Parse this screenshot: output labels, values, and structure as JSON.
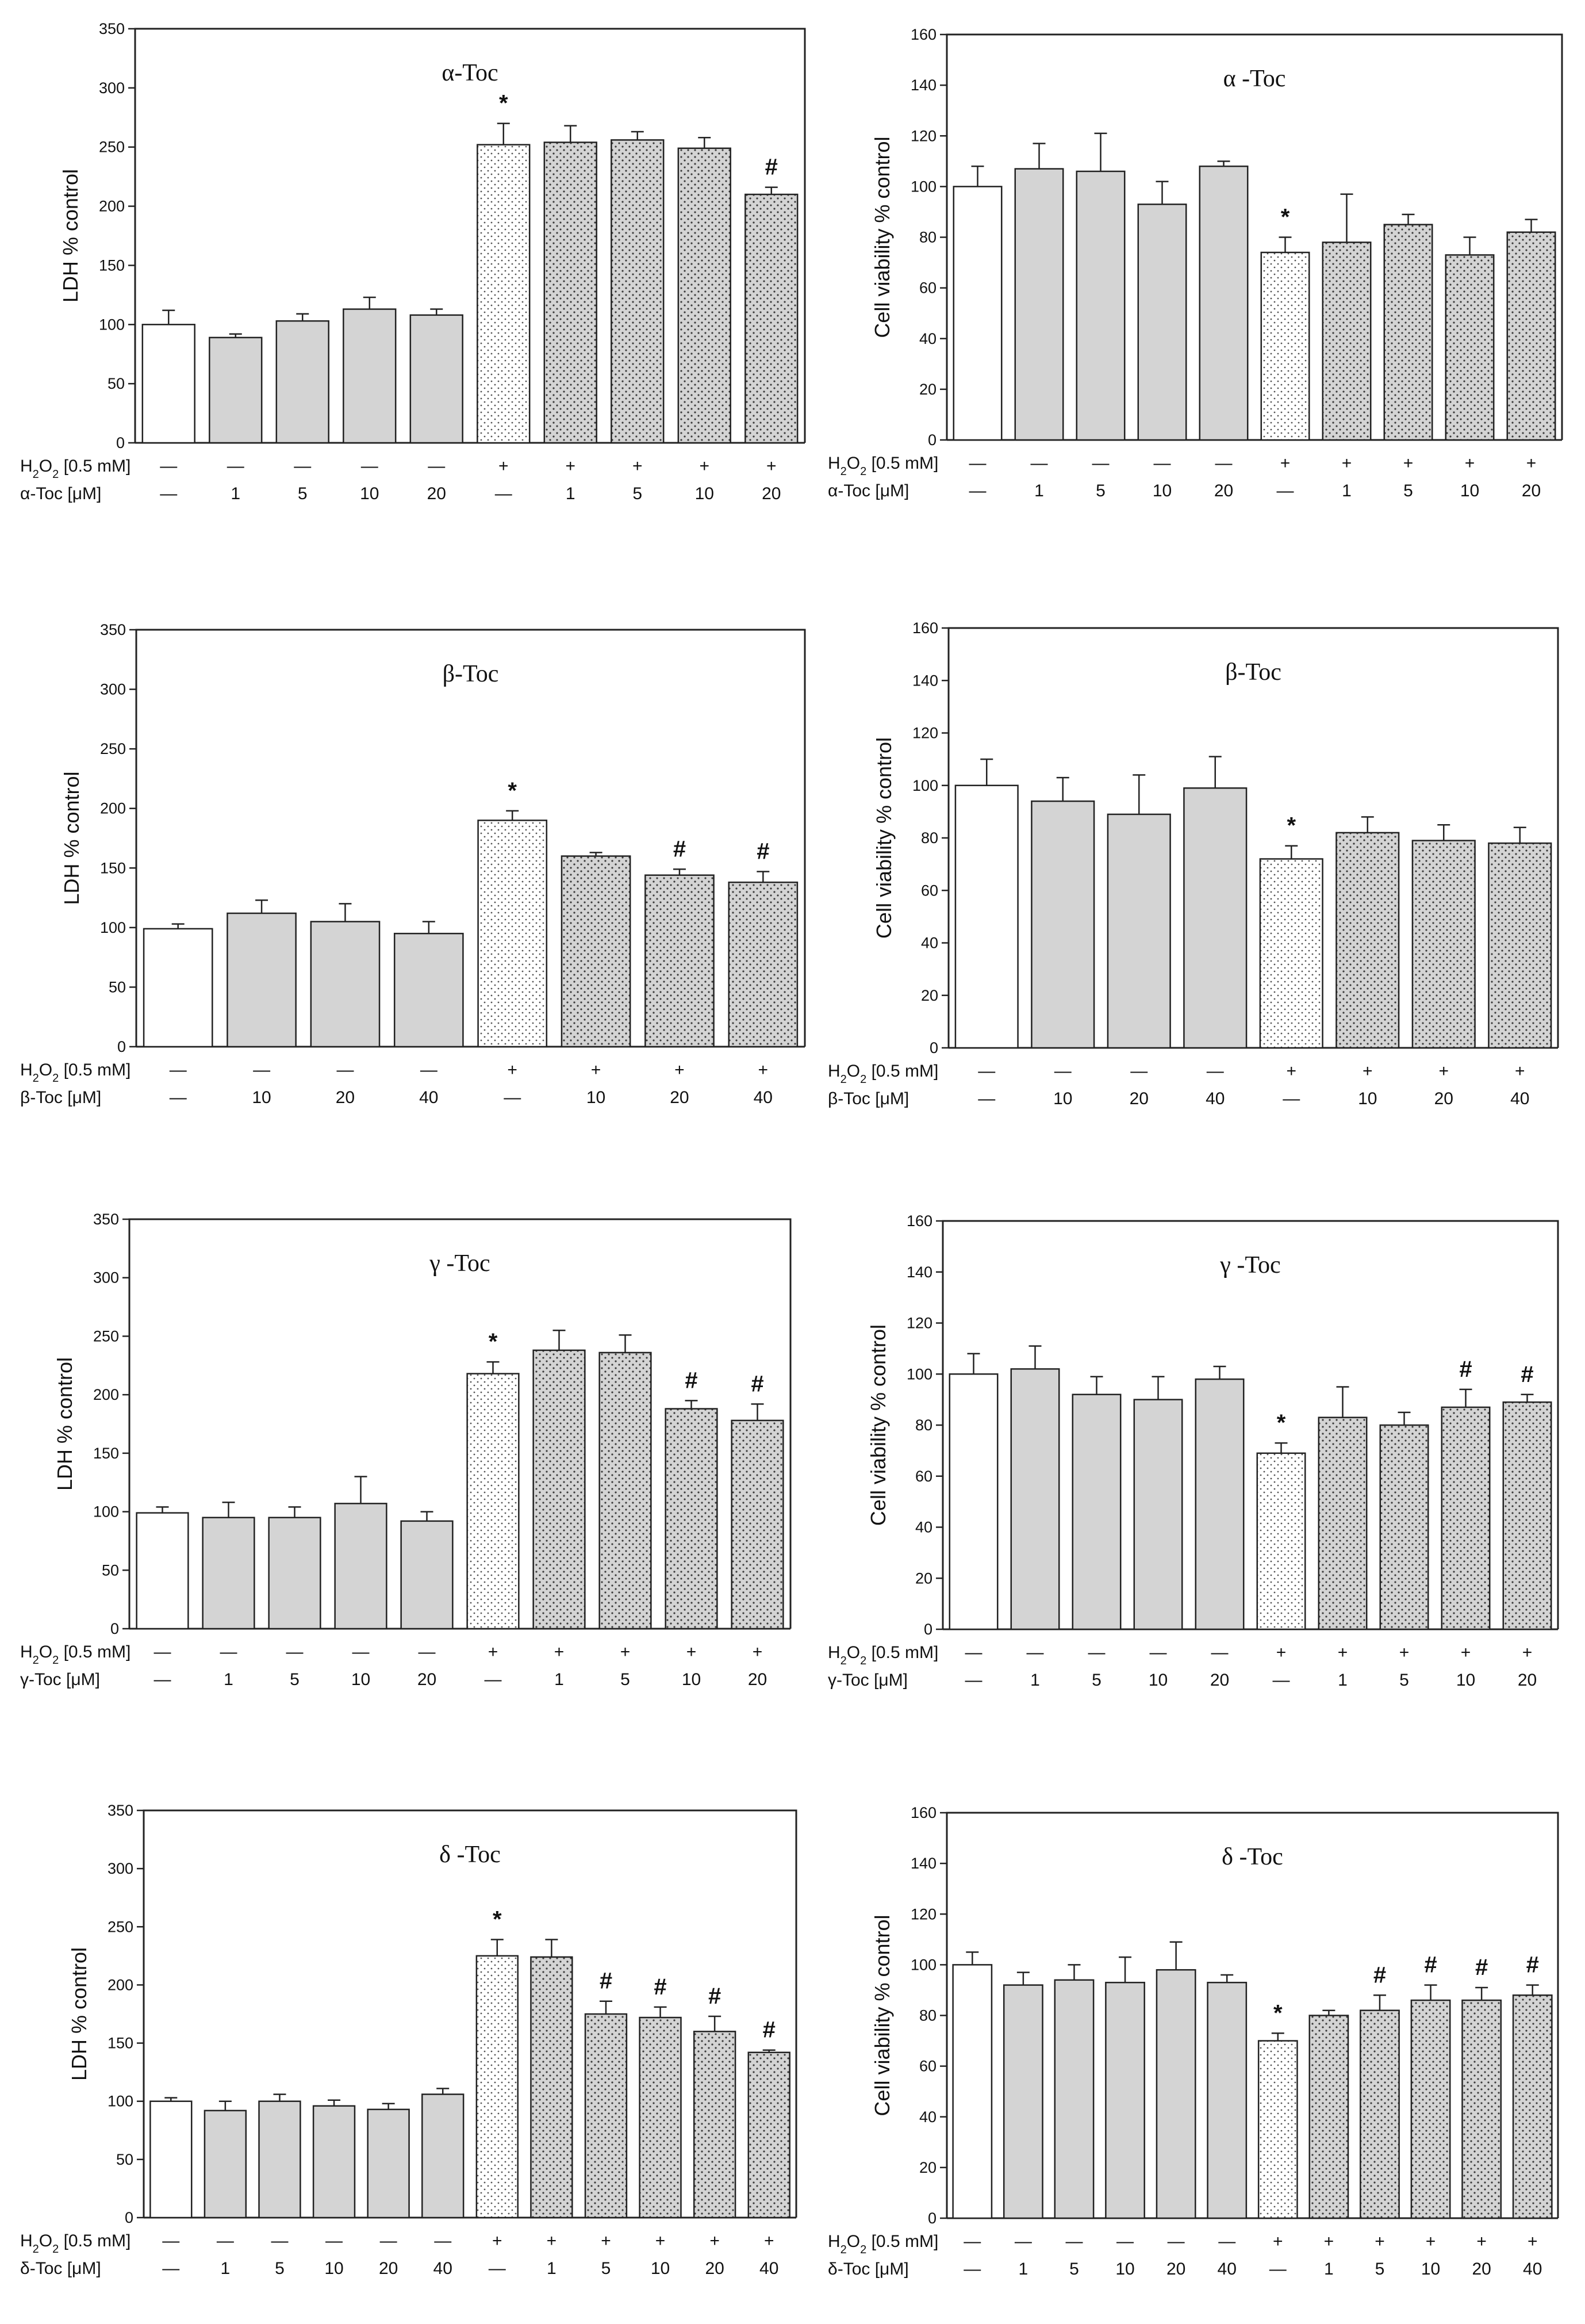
{
  "chart_data": [
    {
      "type": "bar",
      "title": "α-Toc",
      "xlabel": "",
      "ylabel": "LDH % control",
      "ylim": [
        0,
        350
      ],
      "yticks": [
        0,
        50,
        100,
        150,
        200,
        250,
        300,
        350
      ],
      "row_labels": [
        "H2O2 [0.5 mM]",
        "α-Toc [μM]"
      ],
      "categories": [
        {
          "h2o2": "—",
          "dose": "—"
        },
        {
          "h2o2": "—",
          "dose": "1"
        },
        {
          "h2o2": "—",
          "dose": "5"
        },
        {
          "h2o2": "—",
          "dose": "10"
        },
        {
          "h2o2": "—",
          "dose": "20"
        },
        {
          "h2o2": "+",
          "dose": "—"
        },
        {
          "h2o2": "+",
          "dose": "1"
        },
        {
          "h2o2": "+",
          "dose": "5"
        },
        {
          "h2o2": "+",
          "dose": "10"
        },
        {
          "h2o2": "+",
          "dose": "20"
        }
      ],
      "values": [
        100,
        89,
        103,
        113,
        108,
        252,
        254,
        256,
        249,
        210
      ],
      "errors": [
        12,
        3,
        6,
        10,
        5,
        18,
        14,
        7,
        9,
        6
      ],
      "fills": [
        "white",
        "gray",
        "gray",
        "gray",
        "gray",
        "light-dots",
        "dots",
        "dots",
        "dots",
        "dots"
      ],
      "annotations": [
        "",
        "",
        "",
        "",
        "",
        "*",
        "",
        "",
        "",
        "#"
      ]
    },
    {
      "type": "bar",
      "title": "α -Toc",
      "xlabel": "",
      "ylabel": "Cell viability % control",
      "ylim": [
        0,
        160
      ],
      "yticks": [
        0,
        20,
        40,
        60,
        80,
        100,
        120,
        140,
        160
      ],
      "row_labels": [
        "H2O2 [0.5 mM]",
        "α-Toc [μM]"
      ],
      "categories": [
        {
          "h2o2": "—",
          "dose": "—"
        },
        {
          "h2o2": "—",
          "dose": "1"
        },
        {
          "h2o2": "—",
          "dose": "5"
        },
        {
          "h2o2": "—",
          "dose": "10"
        },
        {
          "h2o2": "—",
          "dose": "20"
        },
        {
          "h2o2": "+",
          "dose": "—"
        },
        {
          "h2o2": "+",
          "dose": "1"
        },
        {
          "h2o2": "+",
          "dose": "5"
        },
        {
          "h2o2": "+",
          "dose": "10"
        },
        {
          "h2o2": "+",
          "dose": "20"
        }
      ],
      "values": [
        100,
        107,
        106,
        93,
        108,
        74,
        78,
        85,
        73,
        82
      ],
      "errors": [
        8,
        10,
        15,
        9,
        2,
        6,
        19,
        4,
        7,
        5
      ],
      "fills": [
        "white",
        "gray",
        "gray",
        "gray",
        "gray",
        "light-dots",
        "dots",
        "dots",
        "dots",
        "dots"
      ],
      "annotations": [
        "",
        "",
        "",
        "",
        "",
        "*",
        "",
        "",
        "",
        ""
      ]
    },
    {
      "type": "bar",
      "title": "β-Toc",
      "xlabel": "",
      "ylabel": "LDH % control",
      "ylim": [
        0,
        350
      ],
      "yticks": [
        0,
        50,
        100,
        150,
        200,
        250,
        300,
        350
      ],
      "row_labels": [
        "H2O2 [0.5 mM]",
        "β-Toc [μM]"
      ],
      "categories": [
        {
          "h2o2": "—",
          "dose": "—"
        },
        {
          "h2o2": "—",
          "dose": "10"
        },
        {
          "h2o2": "—",
          "dose": "20"
        },
        {
          "h2o2": "—",
          "dose": "40"
        },
        {
          "h2o2": "+",
          "dose": "—"
        },
        {
          "h2o2": "+",
          "dose": "10"
        },
        {
          "h2o2": "+",
          "dose": "20"
        },
        {
          "h2o2": "+",
          "dose": "40"
        }
      ],
      "values": [
        99,
        112,
        105,
        95,
        190,
        160,
        144,
        138
      ],
      "errors": [
        4,
        11,
        15,
        10,
        8,
        3,
        5,
        9
      ],
      "fills": [
        "white",
        "gray",
        "gray",
        "gray",
        "light-dots",
        "dots",
        "dots",
        "dots"
      ],
      "annotations": [
        "",
        "",
        "",
        "",
        "*",
        "",
        "#",
        "#"
      ]
    },
    {
      "type": "bar",
      "title": "β-Toc",
      "xlabel": "",
      "ylabel": "Cell viability % control",
      "ylim": [
        0,
        160
      ],
      "yticks": [
        0,
        20,
        40,
        60,
        80,
        100,
        120,
        140,
        160
      ],
      "row_labels": [
        "H2O2 [0.5 mM]",
        "β-Toc [μM]"
      ],
      "categories": [
        {
          "h2o2": "—",
          "dose": "—"
        },
        {
          "h2o2": "—",
          "dose": "10"
        },
        {
          "h2o2": "—",
          "dose": "20"
        },
        {
          "h2o2": "—",
          "dose": "40"
        },
        {
          "h2o2": "+",
          "dose": "—"
        },
        {
          "h2o2": "+",
          "dose": "10"
        },
        {
          "h2o2": "+",
          "dose": "20"
        },
        {
          "h2o2": "+",
          "dose": "40"
        }
      ],
      "values": [
        100,
        94,
        89,
        99,
        72,
        82,
        79,
        78
      ],
      "errors": [
        10,
        9,
        15,
        12,
        5,
        6,
        6,
        6
      ],
      "fills": [
        "white",
        "gray",
        "gray",
        "gray",
        "light-dots",
        "dots",
        "dots",
        "dots"
      ],
      "annotations": [
        "",
        "",
        "",
        "",
        "*",
        "",
        "",
        ""
      ]
    },
    {
      "type": "bar",
      "title": "γ -Toc",
      "xlabel": "",
      "ylabel": "LDH % control",
      "ylim": [
        0,
        350
      ],
      "yticks": [
        0,
        50,
        100,
        150,
        200,
        250,
        300,
        350
      ],
      "row_labels": [
        "H2O2 [0.5 mM]",
        "γ-Toc [μM]"
      ],
      "categories": [
        {
          "h2o2": "—",
          "dose": "—"
        },
        {
          "h2o2": "—",
          "dose": "1"
        },
        {
          "h2o2": "—",
          "dose": "5"
        },
        {
          "h2o2": "—",
          "dose": "10"
        },
        {
          "h2o2": "—",
          "dose": "20"
        },
        {
          "h2o2": "+",
          "dose": "—"
        },
        {
          "h2o2": "+",
          "dose": "1"
        },
        {
          "h2o2": "+",
          "dose": "5"
        },
        {
          "h2o2": "+",
          "dose": "10"
        },
        {
          "h2o2": "+",
          "dose": "20"
        }
      ],
      "values": [
        99,
        95,
        95,
        107,
        92,
        218,
        238,
        236,
        188,
        178
      ],
      "errors": [
        5,
        13,
        9,
        23,
        8,
        10,
        17,
        15,
        7,
        14
      ],
      "fills": [
        "white",
        "gray",
        "gray",
        "gray",
        "gray",
        "light-dots",
        "dots",
        "dots",
        "dots",
        "dots"
      ],
      "annotations": [
        "",
        "",
        "",
        "",
        "",
        "*",
        "",
        "",
        "#",
        "#"
      ]
    },
    {
      "type": "bar",
      "title": "γ -Toc",
      "xlabel": "",
      "ylabel": "Cell viability % control",
      "ylim": [
        0,
        160
      ],
      "yticks": [
        0,
        20,
        40,
        60,
        80,
        100,
        120,
        140,
        160
      ],
      "row_labels": [
        "H2O2 [0.5 mM]",
        "γ-Toc [μM]"
      ],
      "categories": [
        {
          "h2o2": "—",
          "dose": "—"
        },
        {
          "h2o2": "—",
          "dose": "1"
        },
        {
          "h2o2": "—",
          "dose": "5"
        },
        {
          "h2o2": "—",
          "dose": "10"
        },
        {
          "h2o2": "—",
          "dose": "20"
        },
        {
          "h2o2": "+",
          "dose": "—"
        },
        {
          "h2o2": "+",
          "dose": "1"
        },
        {
          "h2o2": "+",
          "dose": "5"
        },
        {
          "h2o2": "+",
          "dose": "10"
        },
        {
          "h2o2": "+",
          "dose": "20"
        }
      ],
      "values": [
        100,
        102,
        92,
        90,
        98,
        69,
        83,
        80,
        87,
        89
      ],
      "errors": [
        8,
        9,
        7,
        9,
        5,
        4,
        12,
        5,
        7,
        3
      ],
      "fills": [
        "white",
        "gray",
        "gray",
        "gray",
        "gray",
        "light-dots",
        "dots",
        "dots",
        "dots",
        "dots"
      ],
      "annotations": [
        "",
        "",
        "",
        "",
        "",
        "*",
        "",
        "",
        "#",
        "#"
      ]
    },
    {
      "type": "bar",
      "title": "δ -Toc",
      "xlabel": "",
      "ylabel": "LDH % control",
      "ylim": [
        0,
        350
      ],
      "yticks": [
        0,
        50,
        100,
        150,
        200,
        250,
        300,
        350
      ],
      "row_labels": [
        "H2O2 [0.5 mM]",
        "δ-Toc [μM]"
      ],
      "categories": [
        {
          "h2o2": "—",
          "dose": "—"
        },
        {
          "h2o2": "—",
          "dose": "1"
        },
        {
          "h2o2": "—",
          "dose": "5"
        },
        {
          "h2o2": "—",
          "dose": "10"
        },
        {
          "h2o2": "—",
          "dose": "20"
        },
        {
          "h2o2": "—",
          "dose": "40"
        },
        {
          "h2o2": "+",
          "dose": "—"
        },
        {
          "h2o2": "+",
          "dose": "1"
        },
        {
          "h2o2": "+",
          "dose": "5"
        },
        {
          "h2o2": "+",
          "dose": "10"
        },
        {
          "h2o2": "+",
          "dose": "20"
        },
        {
          "h2o2": "+",
          "dose": "40"
        }
      ],
      "values": [
        100,
        92,
        100,
        96,
        93,
        106,
        225,
        224,
        175,
        172,
        160,
        142
      ],
      "errors": [
        3,
        8,
        6,
        5,
        5,
        5,
        14,
        15,
        11,
        9,
        13,
        2
      ],
      "fills": [
        "white",
        "gray",
        "gray",
        "gray",
        "gray",
        "gray",
        "light-dots",
        "dots",
        "dots",
        "dots",
        "dots",
        "dots"
      ],
      "annotations": [
        "",
        "",
        "",
        "",
        "",
        "",
        "*",
        "",
        "#",
        "#",
        "#",
        "#"
      ]
    },
    {
      "type": "bar",
      "title": "δ -Toc",
      "xlabel": "",
      "ylabel": "Cell viability % control",
      "ylim": [
        0,
        160
      ],
      "yticks": [
        0,
        20,
        40,
        60,
        80,
        100,
        120,
        140,
        160
      ],
      "row_labels": [
        "H2O2 [0.5 mM]",
        "δ-Toc [μM]"
      ],
      "categories": [
        {
          "h2o2": "—",
          "dose": "—"
        },
        {
          "h2o2": "—",
          "dose": "1"
        },
        {
          "h2o2": "—",
          "dose": "5"
        },
        {
          "h2o2": "—",
          "dose": "10"
        },
        {
          "h2o2": "—",
          "dose": "20"
        },
        {
          "h2o2": "—",
          "dose": "40"
        },
        {
          "h2o2": "+",
          "dose": "—"
        },
        {
          "h2o2": "+",
          "dose": "1"
        },
        {
          "h2o2": "+",
          "dose": "5"
        },
        {
          "h2o2": "+",
          "dose": "10"
        },
        {
          "h2o2": "+",
          "dose": "20"
        },
        {
          "h2o2": "+",
          "dose": "40"
        }
      ],
      "values": [
        100,
        92,
        94,
        93,
        98,
        93,
        70,
        80,
        82,
        86,
        86,
        88
      ],
      "errors": [
        5,
        5,
        6,
        10,
        11,
        3,
        3,
        2,
        6,
        6,
        5,
        4
      ],
      "fills": [
        "white",
        "gray",
        "gray",
        "gray",
        "gray",
        "gray",
        "light-dots",
        "dots",
        "dots",
        "dots",
        "dots",
        "dots"
      ],
      "annotations": [
        "",
        "",
        "",
        "",
        "",
        "",
        "*",
        "",
        "#",
        "#",
        "#",
        "#"
      ]
    }
  ]
}
